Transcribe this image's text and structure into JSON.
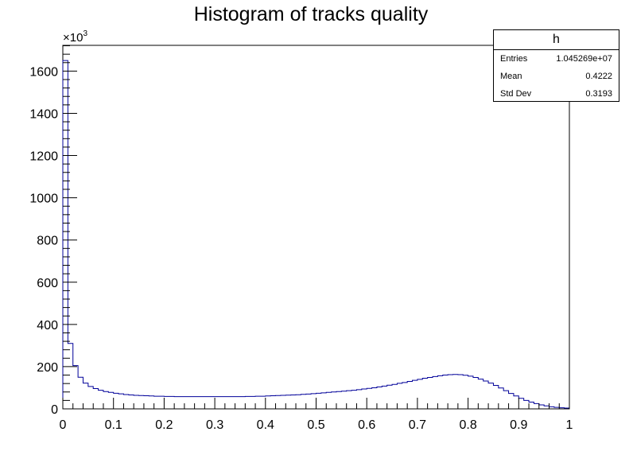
{
  "title": "Histogram of tracks quality",
  "stats": {
    "name": "h",
    "entries_label": "Entries",
    "entries_value": "1.045269e+07",
    "mean_label": "Mean",
    "mean_value": "0.4222",
    "stddev_label": "Std Dev",
    "stddev_value": "0.3193"
  },
  "colors": {
    "line": "#000099",
    "axis": "#000000"
  },
  "chart_data": {
    "type": "histogram",
    "title": "Histogram of tracks quality",
    "xlabel": "",
    "ylabel": "",
    "y_multiplier": "×10",
    "y_multiplier_exp": "3",
    "xlim": [
      0,
      1
    ],
    "ylim": [
      0,
      1722
    ],
    "x_ticks": [
      "0",
      "0.1",
      "0.2",
      "0.3",
      "0.4",
      "0.5",
      "0.6",
      "0.7",
      "0.8",
      "0.9",
      "1"
    ],
    "y_ticks": [
      "0",
      "200",
      "400",
      "600",
      "800",
      "1000",
      "1200",
      "1400",
      "1600"
    ],
    "bin_width": 0.01,
    "values": [
      1650,
      310,
      205,
      150,
      122,
      106,
      96,
      88,
      82,
      78,
      74,
      71,
      68,
      66,
      64,
      63,
      62,
      61,
      60,
      60,
      59,
      59,
      58,
      58,
      58,
      58,
      58,
      58,
      58,
      58,
      58,
      58,
      58,
      58,
      58,
      58,
      59,
      59,
      60,
      60,
      61,
      62,
      63,
      64,
      65,
      66,
      67,
      69,
      70,
      72,
      74,
      76,
      78,
      80,
      82,
      84,
      86,
      88,
      91,
      94,
      97,
      100,
      104,
      108,
      112,
      116,
      121,
      125,
      130,
      135,
      140,
      145,
      149,
      153,
      157,
      160,
      162,
      163,
      162,
      159,
      155,
      149,
      141,
      132,
      122,
      111,
      99,
      86,
      73,
      61,
      50,
      40,
      32,
      25,
      19,
      14,
      10,
      7,
      5,
      4
    ]
  }
}
